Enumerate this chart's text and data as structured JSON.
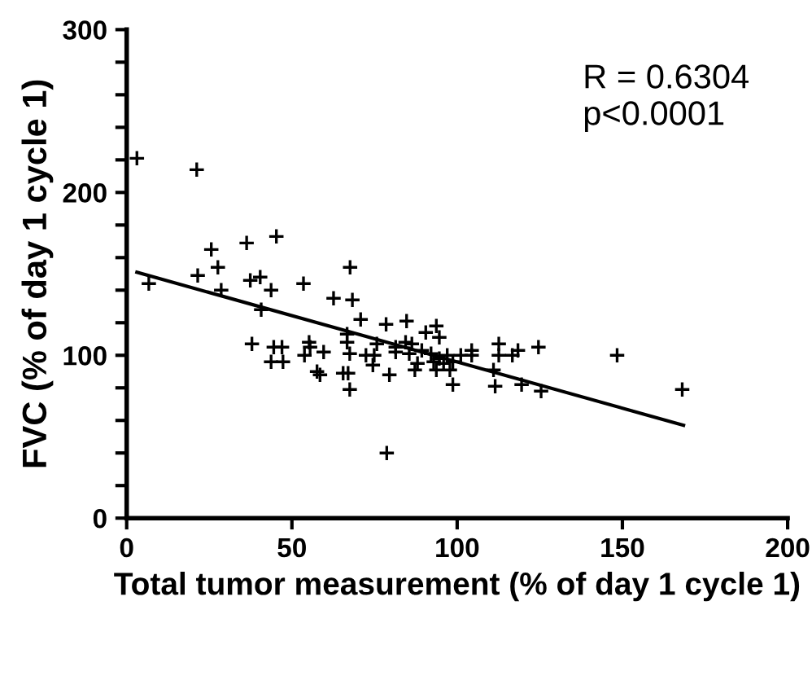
{
  "chart_data": {
    "type": "scatter",
    "xlabel": "Total tumor measurement (% of day 1 cycle 1)",
    "ylabel": "FVC (% of day 1 cycle 1)",
    "annotations": [
      "R = 0.6304",
      "p<0.0001"
    ],
    "xlim": [
      0,
      200
    ],
    "xticks": [
      0,
      50,
      100,
      150,
      200
    ],
    "ylim": [
      0,
      300
    ],
    "yticks": [
      0,
      {
        "value": 20,
        "label": null
      },
      {
        "value": 40,
        "label": null
      },
      {
        "value": 60,
        "label": null
      },
      {
        "value": 80,
        "label": null
      },
      100,
      {
        "value": 120,
        "label": null
      },
      {
        "value": 140,
        "label": null
      },
      {
        "value": 160,
        "label": null
      },
      {
        "value": 180,
        "label": null
      },
      200,
      {
        "value": 220,
        "label": null
      },
      {
        "value": 240,
        "label": null
      },
      {
        "value": 260,
        "label": null
      },
      {
        "value": 280,
        "label": null
      },
      300
    ],
    "grid": false,
    "legend": false,
    "series": [
      {
        "marker": "cross",
        "color": "#000000",
        "x": [
          3.1,
          21.2,
          6.7,
          21.5,
          25.6,
          27.6,
          28.6,
          36.3,
          45.3,
          37.4,
          40.4,
          43.7,
          40.7,
          37.9,
          44.5,
          47,
          43.7,
          47.3,
          53.5,
          53.8,
          55.2,
          55.5,
          59.6,
          57.6,
          58.5,
          62.6,
          67.6,
          68.3,
          66.7,
          66.7,
          67.5,
          65.5,
          67,
          67.5,
          70.8,
          72.4,
          74.9,
          74.5,
          75.7,
          78.5,
          79.5,
          78.7,
          81.4,
          81.4,
          84.7,
          84.4,
          86.3,
          85.5,
          87.2,
          88,
          89.3,
          90.5,
          93.7,
          94.6,
          92.1,
          92.9,
          94.6,
          93.7,
          95.9,
          97,
          97.8,
          98.7,
          98.7,
          101.1,
          104.4,
          104.4,
          111,
          112.6,
          112.6,
          111.5,
          116.7,
          118.4,
          119.5,
          124.6,
          125.4,
          148.4,
          168.1
        ],
        "values": [
          221,
          214,
          144,
          149,
          165,
          154,
          140,
          169,
          173,
          146,
          148,
          140,
          128,
          107,
          105,
          105,
          96,
          96,
          144,
          100,
          108,
          105,
          102,
          90,
          88,
          135,
          154,
          134,
          113,
          108,
          101,
          89,
          89,
          79,
          122,
          100,
          100,
          94,
          107,
          119,
          88,
          40,
          105,
          102,
          121,
          108,
          107,
          101,
          91,
          95,
          103,
          114,
          118,
          111,
          101,
          96,
          98,
          91,
          95,
          100,
          91,
          96,
          82,
          100,
          103,
          100,
          91,
          107,
          100,
          81,
          100,
          103,
          82,
          105,
          78,
          100,
          79
        ]
      },
      {
        "type": "line",
        "line_style": "solid",
        "color": "#000000",
        "x": [
          3.1,
          168.5
        ],
        "values": [
          151,
          57
        ]
      }
    ]
  }
}
